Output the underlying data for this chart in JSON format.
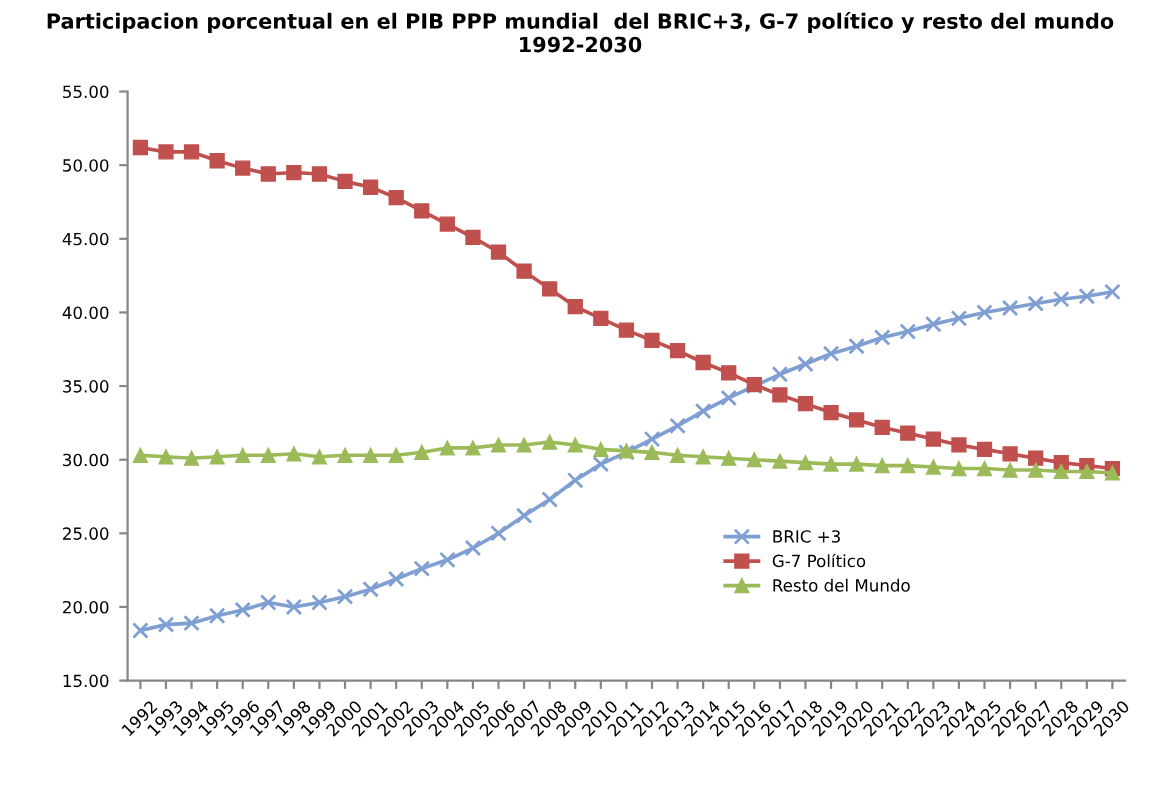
{
  "chart_data": {
    "type": "line",
    "title": "Participacion porcentual en el PIB PPP mundial  del BRIC+3, G-7 político y resto del mundo\n1992-2030",
    "categories": [
      "1992",
      "1993",
      "1994",
      "1995",
      "1996",
      "1997",
      "1998",
      "1999",
      "2000",
      "2001",
      "2002",
      "2003",
      "2004",
      "2005",
      "2006",
      "2007",
      "2008",
      "2009",
      "2010",
      "2011",
      "2012",
      "2013",
      "2014",
      "2015",
      "2016",
      "2017",
      "2018",
      "2019",
      "2020",
      "2021",
      "2022",
      "2023",
      "2024",
      "2025",
      "2026",
      "2027",
      "2028",
      "2029",
      "2030"
    ],
    "series": [
      {
        "name": "BRIC +3",
        "color": "#7f9fd3",
        "marker": "cross",
        "values": [
          18.4,
          18.8,
          18.9,
          19.4,
          19.8,
          20.3,
          20.0,
          20.3,
          20.7,
          21.2,
          21.9,
          22.6,
          23.2,
          24.0,
          25.0,
          26.2,
          27.3,
          28.6,
          29.7,
          30.5,
          31.4,
          32.3,
          33.3,
          34.2,
          35.0,
          35.8,
          36.5,
          37.2,
          37.7,
          38.3,
          38.7,
          39.2,
          39.6,
          40.0,
          40.3,
          40.6,
          40.9,
          41.1,
          41.4
        ]
      },
      {
        "name": "G-7 Político",
        "color": "#c0504d",
        "marker": "square",
        "values": [
          51.2,
          50.9,
          50.9,
          50.3,
          49.8,
          49.4,
          49.5,
          49.4,
          48.9,
          48.5,
          47.8,
          46.9,
          46.0,
          45.1,
          44.1,
          42.8,
          41.6,
          40.4,
          39.6,
          38.8,
          38.1,
          37.4,
          36.6,
          35.9,
          35.1,
          34.4,
          33.8,
          33.2,
          32.7,
          32.2,
          31.8,
          31.4,
          31.0,
          30.7,
          30.4,
          30.1,
          29.8,
          29.6,
          29.4
        ]
      },
      {
        "name": "Resto del Mundo",
        "color": "#9bbb59",
        "marker": "triangle",
        "values": [
          30.3,
          30.2,
          30.1,
          30.2,
          30.3,
          30.3,
          30.4,
          30.2,
          30.3,
          30.3,
          30.3,
          30.5,
          30.8,
          30.8,
          31.0,
          31.0,
          31.2,
          31.0,
          30.7,
          30.6,
          30.5,
          30.3,
          30.2,
          30.1,
          30.0,
          29.9,
          29.8,
          29.7,
          29.7,
          29.6,
          29.6,
          29.5,
          29.4,
          29.4,
          29.3,
          29.3,
          29.2,
          29.2,
          29.1
        ]
      }
    ],
    "ylim": [
      15,
      55
    ],
    "yticks": [
      {
        "value": 15,
        "label": "15.00"
      },
      {
        "value": 20,
        "label": "20.00"
      },
      {
        "value": 25,
        "label": "25.00"
      },
      {
        "value": 30,
        "label": "30.00"
      },
      {
        "value": 35,
        "label": "35.00"
      },
      {
        "value": 40,
        "label": "40.00"
      },
      {
        "value": 45,
        "label": "45.00"
      },
      {
        "value": 50,
        "label": "50.00"
      },
      {
        "value": 55,
        "label": "55.00"
      }
    ],
    "grid": false,
    "legend": "bottom right",
    "line_style": "solid"
  }
}
